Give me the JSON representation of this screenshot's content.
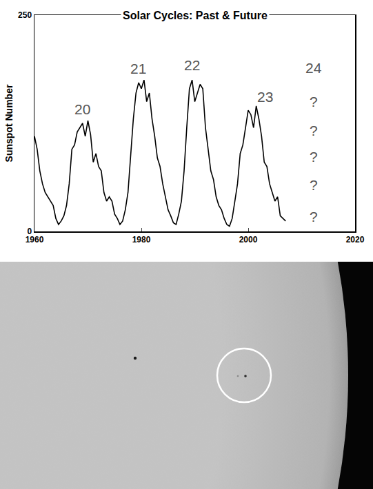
{
  "chart_data": {
    "type": "line",
    "title": "Solar Cycles: Past & Future",
    "y_label": "Sunspot Number",
    "color": "#000000",
    "x": [
      1960,
      1960.5,
      1961,
      1961.5,
      1962,
      1962.5,
      1963,
      1963.5,
      1964,
      1964.5,
      1965,
      1965.5,
      1966,
      1966.5,
      1967,
      1967.5,
      1968,
      1968.5,
      1969,
      1969.5,
      1970,
      1970.5,
      1971,
      1971.5,
      1972,
      1972.5,
      1973,
      1973.5,
      1974,
      1974.5,
      1975,
      1975.5,
      1976,
      1976.5,
      1977,
      1977.5,
      1978,
      1978.5,
      1979,
      1979.5,
      1980,
      1980.5,
      1981,
      1981.5,
      1982,
      1982.5,
      1983,
      1983.5,
      1984,
      1984.5,
      1985,
      1985.5,
      1986,
      1986.5,
      1987,
      1987.5,
      1988,
      1988.5,
      1989,
      1989.5,
      1990,
      1990.5,
      1991,
      1991.5,
      1992,
      1992.5,
      1993,
      1993.5,
      1994,
      1994.5,
      1995,
      1995.5,
      1996,
      1996.5,
      1997,
      1997.5,
      1998,
      1998.5,
      1999,
      1999.5,
      2000,
      2000.5,
      2001,
      2001.5,
      2002,
      2002.5,
      2003,
      2003.5,
      2004,
      2004.5,
      2005,
      2005.5,
      2006,
      2006.5,
      2007
    ],
    "values": [
      110,
      95,
      70,
      55,
      45,
      40,
      35,
      30,
      15,
      8,
      12,
      18,
      30,
      55,
      95,
      100,
      115,
      120,
      125,
      110,
      128,
      112,
      80,
      90,
      75,
      70,
      45,
      35,
      40,
      35,
      20,
      15,
      8,
      12,
      25,
      45,
      85,
      130,
      160,
      172,
      165,
      175,
      150,
      160,
      130,
      110,
      85,
      75,
      55,
      40,
      25,
      18,
      10,
      8,
      20,
      35,
      70,
      120,
      165,
      175,
      150,
      160,
      170,
      165,
      120,
      95,
      70,
      60,
      40,
      30,
      25,
      15,
      8,
      6,
      15,
      35,
      55,
      90,
      100,
      120,
      140,
      135,
      120,
      145,
      130,
      110,
      80,
      75,
      55,
      45,
      35,
      40,
      18,
      15,
      12
    ],
    "xlim": [
      1960,
      2020
    ],
    "xticks": [
      1960,
      1980,
      2000,
      2020
    ],
    "ylim": [
      0,
      250
    ],
    "yticks": [
      0,
      250
    ],
    "grid": false,
    "annotations": [
      {
        "text": "20",
        "x": 1969,
        "y": 141
      },
      {
        "text": "21",
        "x": 1979.4,
        "y": 188
      },
      {
        "text": "22",
        "x": 1989.5,
        "y": 192
      },
      {
        "text": "23",
        "x": 2003.2,
        "y": 156
      },
      {
        "text": "24",
        "x": 2012.3,
        "y": 189
      },
      {
        "text": "?",
        "x": 2012.3,
        "y": 150
      },
      {
        "text": "?",
        "x": 2012.3,
        "y": 117
      },
      {
        "text": "?",
        "x": 2012.3,
        "y": 86
      },
      {
        "text": "?",
        "x": 2012.3,
        "y": 54
      },
      {
        "text": "?",
        "x": 2012.3,
        "y": 17
      }
    ]
  }
}
